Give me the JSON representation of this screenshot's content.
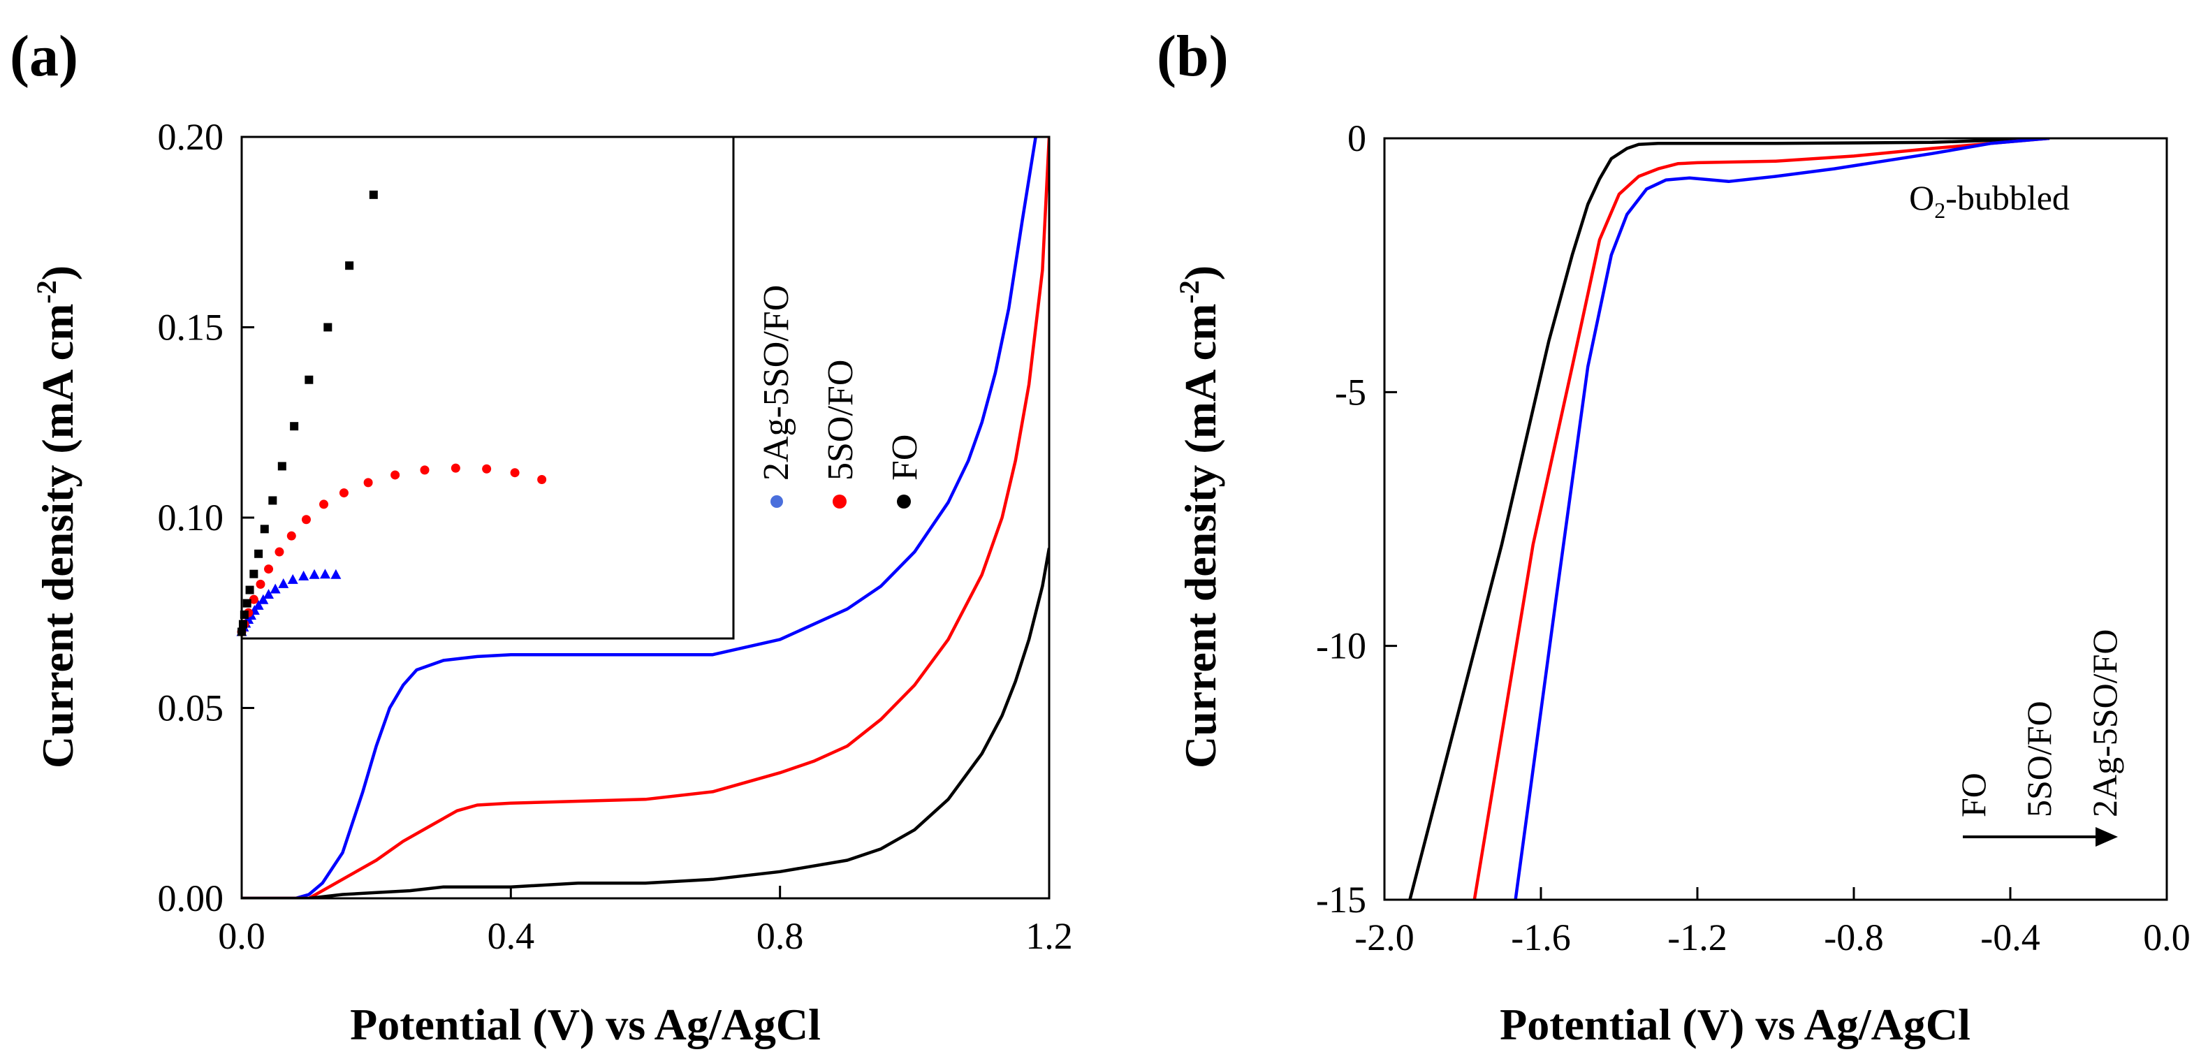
{
  "chart_data": [
    {
      "panel_label": "(a)",
      "type": "line",
      "xlabel": "Potential (V) vs Ag/AgCl",
      "ylabel": "Current density (mA cm",
      "ylabel_sup": "-2",
      "ylabel_close": ")",
      "xlim": [
        0,
        1.2
      ],
      "ylim": [
        0,
        0.2
      ],
      "xticks": [
        0.0,
        0.4,
        0.8,
        1.2
      ],
      "xtick_labels": [
        "0.0",
        "0.4",
        "0.8",
        "1.2"
      ],
      "yticks": [
        0.0,
        0.05,
        0.1,
        0.15,
        0.2
      ],
      "ytick_labels": [
        "0.00",
        "0.05",
        "0.10",
        "0.15",
        "0.20"
      ],
      "series": [
        {
          "name": "2Ag-5SO/FO",
          "color": "#0000ff",
          "x": [
            0,
            0.08,
            0.1,
            0.12,
            0.15,
            0.18,
            0.2,
            0.22,
            0.24,
            0.26,
            0.3,
            0.35,
            0.4,
            0.5,
            0.6,
            0.7,
            0.8,
            0.9,
            0.95,
            1.0,
            1.05,
            1.08,
            1.1,
            1.12,
            1.14,
            1.16,
            1.18
          ],
          "y": [
            0,
            0,
            0.001,
            0.004,
            0.012,
            0.028,
            0.04,
            0.05,
            0.056,
            0.06,
            0.0625,
            0.0635,
            0.064,
            0.064,
            0.064,
            0.064,
            0.068,
            0.076,
            0.082,
            0.091,
            0.104,
            0.115,
            0.125,
            0.138,
            0.155,
            0.178,
            0.2
          ]
        },
        {
          "name": "5SO/FO",
          "color": "#ff0000",
          "x": [
            0,
            0.1,
            0.13,
            0.16,
            0.2,
            0.24,
            0.28,
            0.32,
            0.35,
            0.4,
            0.5,
            0.6,
            0.7,
            0.8,
            0.85,
            0.9,
            0.95,
            1.0,
            1.05,
            1.1,
            1.13,
            1.15,
            1.17,
            1.19,
            1.2
          ],
          "y": [
            0,
            0,
            0.003,
            0.006,
            0.01,
            0.015,
            0.019,
            0.023,
            0.0245,
            0.025,
            0.0255,
            0.026,
            0.028,
            0.033,
            0.036,
            0.04,
            0.047,
            0.056,
            0.068,
            0.085,
            0.1,
            0.115,
            0.135,
            0.165,
            0.2
          ]
        },
        {
          "name": "FO",
          "color": "#000000",
          "x": [
            0,
            0.1,
            0.15,
            0.2,
            0.25,
            0.3,
            0.4,
            0.5,
            0.6,
            0.7,
            0.8,
            0.9,
            0.95,
            1.0,
            1.05,
            1.1,
            1.13,
            1.15,
            1.17,
            1.19,
            1.2
          ],
          "y": [
            0,
            0,
            0.001,
            0.0015,
            0.002,
            0.003,
            0.003,
            0.004,
            0.004,
            0.005,
            0.007,
            0.01,
            0.013,
            0.018,
            0.026,
            0.038,
            0.048,
            0.057,
            0.068,
            0.082,
            0.092
          ]
        }
      ],
      "inset": {
        "type": "scatter",
        "series": [
          {
            "name": "2Ag-5SO/FO",
            "marker": "triangle",
            "color": "#0000ff",
            "points": [
              [
                0.0,
                0.07
              ],
              [
                0.003,
                0.0712
              ],
              [
                0.006,
                0.0722
              ],
              [
                0.01,
                0.0732
              ],
              [
                0.014,
                0.0743
              ],
              [
                0.019,
                0.0756
              ],
              [
                0.025,
                0.0769
              ],
              [
                0.032,
                0.0784
              ],
              [
                0.04,
                0.0798
              ],
              [
                0.05,
                0.0812
              ],
              [
                0.062,
                0.0826
              ],
              [
                0.076,
                0.0837
              ],
              [
                0.092,
                0.0846
              ],
              [
                0.108,
                0.085
              ],
              [
                0.124,
                0.0851
              ],
              [
                0.14,
                0.085
              ]
            ]
          },
          {
            "name": "5SO/FO",
            "marker": "circle",
            "color": "#ff0000",
            "points": [
              [
                0.0,
                0.07
              ],
              [
                0.004,
                0.072
              ],
              [
                0.01,
                0.075
              ],
              [
                0.018,
                0.0785
              ],
              [
                0.028,
                0.0825
              ],
              [
                0.04,
                0.0865
              ],
              [
                0.056,
                0.091
              ],
              [
                0.074,
                0.0952
              ],
              [
                0.096,
                0.0995
              ],
              [
                0.122,
                0.1035
              ],
              [
                0.152,
                0.1065
              ],
              [
                0.188,
                0.1092
              ],
              [
                0.228,
                0.1112
              ],
              [
                0.272,
                0.1125
              ],
              [
                0.318,
                0.113
              ],
              [
                0.364,
                0.1128
              ],
              [
                0.406,
                0.1118
              ],
              [
                0.446,
                0.11
              ]
            ]
          },
          {
            "name": "FO",
            "marker": "square",
            "color": "#000000",
            "points": [
              [
                0.0,
                0.07
              ],
              [
                0.002,
                0.072
              ],
              [
                0.004,
                0.0745
              ],
              [
                0.008,
                0.0775
              ],
              [
                0.012,
                0.081
              ],
              [
                0.018,
                0.0852
              ],
              [
                0.025,
                0.0905
              ],
              [
                0.034,
                0.097
              ],
              [
                0.046,
                0.1045
              ],
              [
                0.06,
                0.1135
              ],
              [
                0.078,
                0.124
              ],
              [
                0.1,
                0.1362
              ],
              [
                0.128,
                0.15
              ],
              [
                0.16,
                0.1662
              ],
              [
                0.196,
                0.1848
              ]
            ]
          }
        ]
      },
      "legend": [
        "2Ag-5SO/FO",
        "5SO/FO",
        "FO"
      ],
      "legend_colors": [
        "#4a6fdc",
        "#ff0000",
        "#000000"
      ]
    },
    {
      "panel_label": "(b)",
      "type": "line",
      "xlabel": "Potential (V) vs Ag/AgCl",
      "ylabel": "Current density (mA cm",
      "ylabel_sup": "-2",
      "ylabel_close": ")",
      "xlim": [
        -2.0,
        0.0
      ],
      "ylim": [
        -15,
        0
      ],
      "xticks": [
        -2.0,
        -1.6,
        -1.2,
        -0.8,
        -0.4,
        0.0
      ],
      "xtick_labels": [
        "-2.0",
        "-1.6",
        "-1.2",
        "-0.8",
        "-0.4",
        "0.0"
      ],
      "yticks": [
        0,
        -5,
        -10,
        -15
      ],
      "ytick_labels": [
        "0",
        "-5",
        "-10",
        "-15"
      ],
      "annotation": "O",
      "annotation_sub": "2",
      "annotation_rest": "-bubbled",
      "arrow_labels": [
        "FO",
        "5SO/FO",
        "2Ag-5SO/FO"
      ],
      "series": [
        {
          "name": "FO",
          "color": "#000000",
          "x": [
            -1.935,
            -1.7,
            -1.58,
            -1.52,
            -1.48,
            -1.45,
            -1.42,
            -1.38,
            -1.35,
            -1.3,
            -1.0,
            -0.6,
            -0.3
          ],
          "y": [
            -15,
            -8.0,
            -4.0,
            -2.3,
            -1.3,
            -0.8,
            -0.4,
            -0.2,
            -0.12,
            -0.1,
            -0.1,
            -0.08,
            0
          ]
        },
        {
          "name": "5SO/FO",
          "color": "#ff0000",
          "x": [
            -1.77,
            -1.62,
            -1.52,
            -1.45,
            -1.4,
            -1.35,
            -1.3,
            -1.25,
            -1.2,
            -1.0,
            -0.8,
            -0.6,
            -0.3
          ],
          "y": [
            -15,
            -8.0,
            -4.5,
            -2.0,
            -1.1,
            -0.75,
            -0.6,
            -0.5,
            -0.48,
            -0.45,
            -0.35,
            -0.2,
            0
          ]
        },
        {
          "name": "2Ag-5SO/FO",
          "color": "#0000ff",
          "x": [
            -1.665,
            -1.56,
            -1.48,
            -1.42,
            -1.38,
            -1.33,
            -1.28,
            -1.22,
            -1.12,
            -1.0,
            -0.85,
            -0.6,
            -0.45,
            -0.3
          ],
          "y": [
            -15,
            -9.0,
            -4.5,
            -2.3,
            -1.5,
            -1.0,
            -0.82,
            -0.78,
            -0.85,
            -0.75,
            -0.6,
            -0.3,
            -0.1,
            0
          ]
        }
      ]
    }
  ]
}
